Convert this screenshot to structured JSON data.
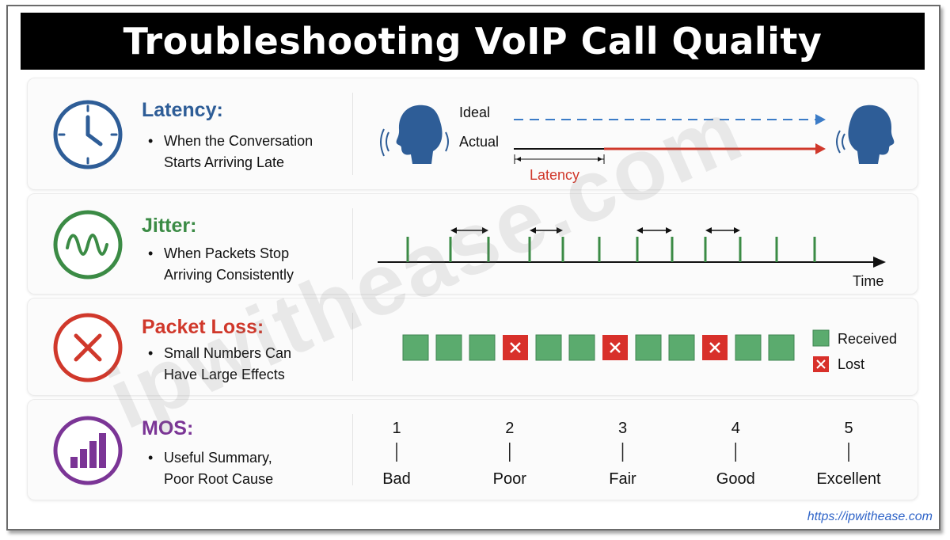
{
  "title": "Troubleshooting VoIP Call Quality",
  "watermark": "ipwithease.com",
  "footer_url": "https://ipwithease.com",
  "colors": {
    "latency": "#2e5d97",
    "jitter": "#3b8b45",
    "loss": "#d0382b",
    "mos": "#7b3596",
    "received": "#5bab6e",
    "lost": "#d8302a"
  },
  "sections": {
    "latency": {
      "icon": "clock-icon",
      "heading": "Latency:",
      "bullet_line1": "When the Conversation",
      "bullet_line2": "Starts Arriving Late",
      "ideal_label": "Ideal",
      "actual_label": "Actual",
      "latency_label": "Latency"
    },
    "jitter": {
      "icon": "waveform-icon",
      "heading": "Jitter:",
      "bullet_line1": "When Packets Stop",
      "bullet_line2": "Arriving Consistently",
      "time_label": "Time"
    },
    "packet_loss": {
      "icon": "x-circle-icon",
      "heading": "Packet Loss:",
      "bullet_line1": "Small Numbers Can",
      "bullet_line2": "Have Large Effects",
      "packets": [
        "received",
        "received",
        "received",
        "lost",
        "received",
        "received",
        "lost",
        "received",
        "received",
        "lost",
        "received",
        "received"
      ],
      "legend_received": "Received",
      "legend_lost": "Lost"
    },
    "mos": {
      "icon": "bar-chart-icon",
      "heading": "MOS:",
      "bullet_line1": "Useful Summary,",
      "bullet_line2": "Poor Root Cause",
      "scale": [
        {
          "value": "1",
          "label": "Bad"
        },
        {
          "value": "2",
          "label": "Poor"
        },
        {
          "value": "3",
          "label": "Fair"
        },
        {
          "value": "4",
          "label": "Good"
        },
        {
          "value": "5",
          "label": "Excellent"
        }
      ]
    }
  }
}
